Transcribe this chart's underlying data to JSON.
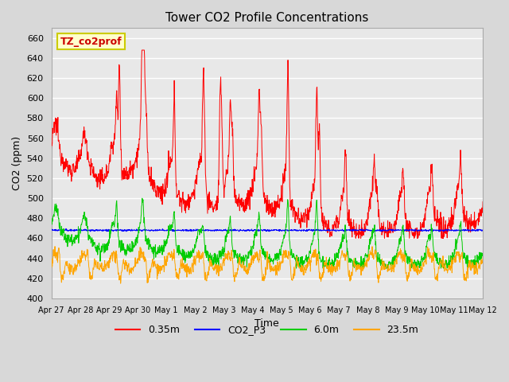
{
  "title": "Tower CO2 Profile Concentrations",
  "xlabel": "Time",
  "ylabel": "CO2 (ppm)",
  "ylim": [
    400,
    670
  ],
  "yticks": [
    400,
    420,
    440,
    460,
    480,
    500,
    520,
    540,
    560,
    580,
    600,
    620,
    640,
    660
  ],
  "series": [
    "0.35m",
    "CO2_P3",
    "6.0m",
    "23.5m"
  ],
  "colors": [
    "red",
    "blue",
    "green",
    "orange"
  ],
  "legend_label": "TZ_co2prof",
  "legend_label_color": "#cc0000",
  "legend_box_color": "#ffffcc",
  "legend_box_edge": "#cccc00",
  "background_color": "#d8d8d8",
  "plot_bg_color": "#e8e8e8",
  "x_tick_labels": [
    "Apr 27",
    "Apr 28",
    "Apr 29",
    "Apr 30",
    "May 1",
    "May 2",
    "May 3",
    "May 4",
    "May 5",
    "May 6",
    "May 7",
    "May 8",
    "May 9",
    "May 10",
    "May 11",
    "May 12"
  ],
  "x_tick_positions": [
    0,
    1,
    2,
    3,
    4,
    5,
    6,
    7,
    8,
    9,
    10,
    11,
    12,
    13,
    14,
    15
  ]
}
